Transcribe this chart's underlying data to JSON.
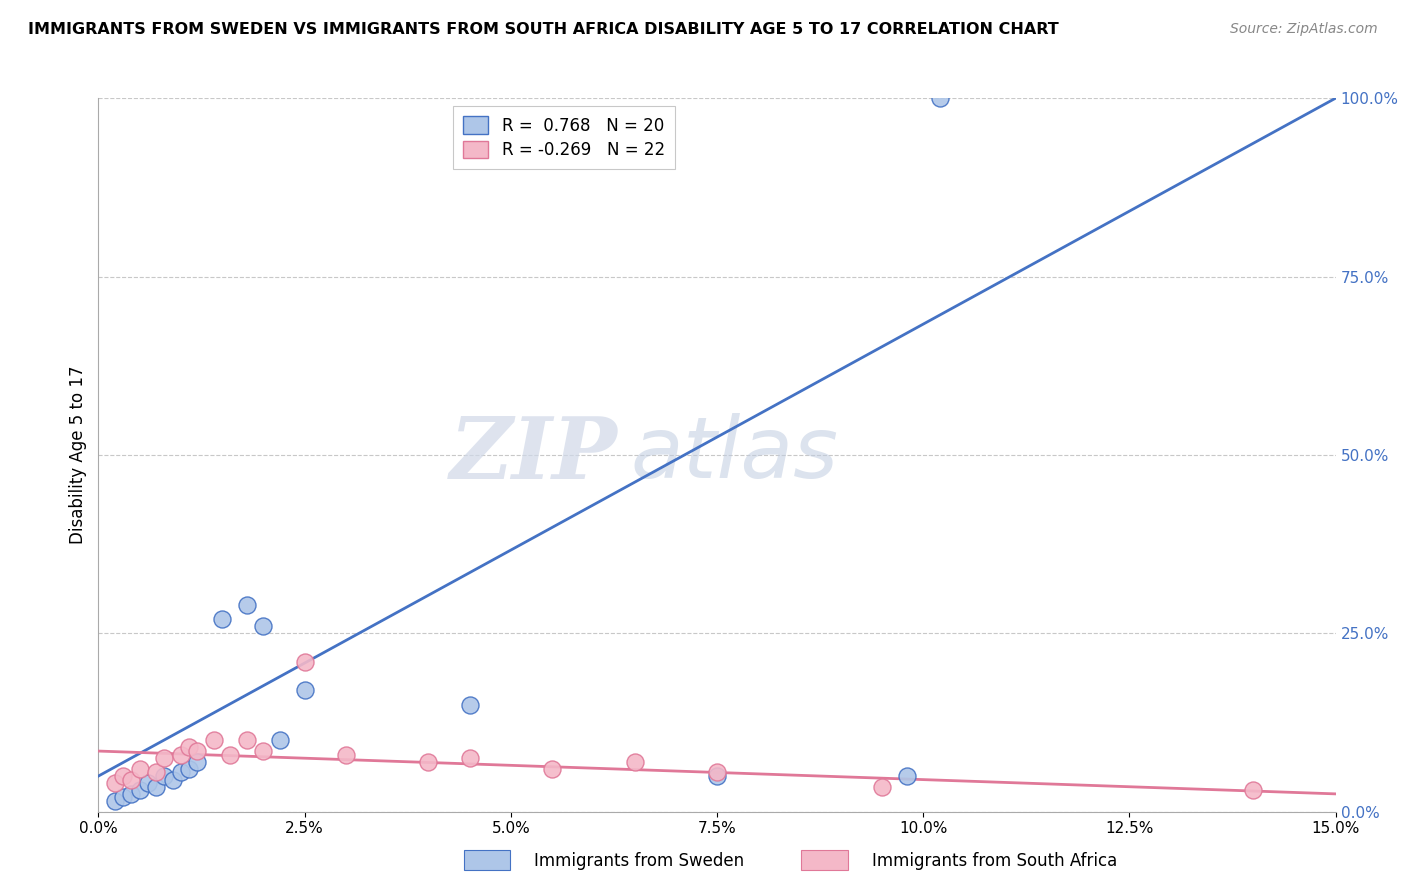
{
  "title": "IMMIGRANTS FROM SWEDEN VS IMMIGRANTS FROM SOUTH AFRICA DISABILITY AGE 5 TO 17 CORRELATION CHART",
  "source": "Source: ZipAtlas.com",
  "ylabel": "Disability Age 5 to 17",
  "ylabel_right_ticks": [
    0.0,
    25.0,
    50.0,
    75.0,
    100.0
  ],
  "ylabel_right_labels": [
    "0.0%",
    "25.0%",
    "50.0%",
    "75.0%",
    "100.0%"
  ],
  "xmin": 0.0,
  "xmax": 15.0,
  "ymin": 0.0,
  "ymax": 100.0,
  "sweden_R": 0.768,
  "sweden_N": 20,
  "sa_R": -0.269,
  "sa_N": 22,
  "sweden_color": "#aec6e8",
  "sweden_line_color": "#4472c4",
  "sa_color": "#f4b8c8",
  "sa_line_color": "#e07898",
  "legend_label_sweden": "Immigrants from Sweden",
  "legend_label_sa": "Immigrants from South Africa",
  "watermark_zip": "ZIP",
  "watermark_atlas": "atlas",
  "sweden_points_x": [
    0.2,
    0.3,
    0.4,
    0.5,
    0.6,
    0.7,
    0.8,
    0.9,
    1.0,
    1.1,
    1.2,
    1.5,
    1.8,
    2.0,
    2.2,
    2.5,
    4.5,
    7.5,
    9.8,
    10.2
  ],
  "sweden_points_y": [
    1.5,
    2.0,
    2.5,
    3.0,
    4.0,
    3.5,
    5.0,
    4.5,
    5.5,
    6.0,
    7.0,
    27.0,
    29.0,
    26.0,
    10.0,
    17.0,
    15.0,
    5.0,
    5.0,
    100.0
  ],
  "sa_points_x": [
    0.2,
    0.3,
    0.4,
    0.5,
    0.7,
    0.8,
    1.0,
    1.1,
    1.2,
    1.4,
    1.6,
    1.8,
    2.0,
    2.5,
    3.0,
    4.0,
    4.5,
    5.5,
    6.5,
    7.5,
    9.5,
    14.0
  ],
  "sa_points_y": [
    4.0,
    5.0,
    4.5,
    6.0,
    5.5,
    7.5,
    8.0,
    9.0,
    8.5,
    10.0,
    8.0,
    10.0,
    8.5,
    21.0,
    8.0,
    7.0,
    7.5,
    6.0,
    7.0,
    5.5,
    3.5,
    3.0
  ],
  "sweden_line_x0": 0.0,
  "sweden_line_y0": 5.0,
  "sweden_line_x1": 15.0,
  "sweden_line_y1": 100.0,
  "sa_line_x0": 0.0,
  "sa_line_y0": 8.5,
  "sa_line_x1": 15.0,
  "sa_line_y1": 2.5
}
